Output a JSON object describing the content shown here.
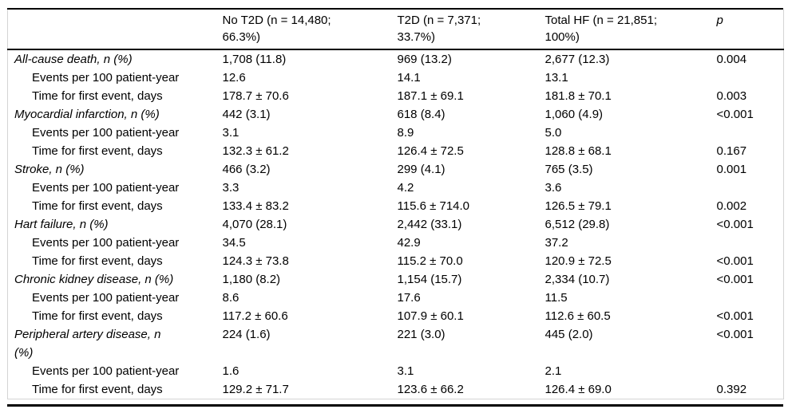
{
  "colors": {
    "rule": "#000000",
    "grid_border": "#d4d4d4",
    "text": "#000000",
    "background": "#ffffff"
  },
  "table": {
    "columns": [
      {
        "id": "outcome",
        "line1": "",
        "line2": ""
      },
      {
        "id": "no_t2d",
        "line1": "No T2D (n = 14,480;",
        "line2": "66.3%)"
      },
      {
        "id": "t2d",
        "line1": "T2D (n = 7,371;",
        "line2": "33.7%)"
      },
      {
        "id": "total_hf",
        "line1": "Total HF (n = 21,851;",
        "line2": "100%)"
      },
      {
        "id": "p",
        "line1": "p",
        "line2": ""
      }
    ],
    "rows": [
      {
        "type": "category",
        "label_lines": [
          "All-cause death, n (%)"
        ],
        "values": [
          "1,708 (11.8)",
          "969 (13.2)",
          "2,677 (12.3)",
          "0.004"
        ]
      },
      {
        "type": "sub",
        "label_lines": [
          "Events per 100 patient-year"
        ],
        "values": [
          "12.6",
          "14.1",
          "13.1",
          ""
        ]
      },
      {
        "type": "sub",
        "label_lines": [
          "Time for first event, days"
        ],
        "values": [
          "178.7 ± 70.6",
          "187.1 ± 69.1",
          "181.8 ± 70.1",
          "0.003"
        ]
      },
      {
        "type": "category",
        "label_lines": [
          "Myocardial infarction, n (%)"
        ],
        "values": [
          "442 (3.1)",
          "618 (8.4)",
          "1,060 (4.9)",
          "<0.001"
        ]
      },
      {
        "type": "sub",
        "label_lines": [
          "Events per 100 patient-year"
        ],
        "values": [
          "3.1",
          "8.9",
          "5.0",
          ""
        ]
      },
      {
        "type": "sub",
        "label_lines": [
          "Time for first event, days"
        ],
        "values": [
          "132.3 ± 61.2",
          "126.4 ± 72.5",
          "128.8 ± 68.1",
          "0.167"
        ]
      },
      {
        "type": "category",
        "label_lines": [
          "Stroke, n (%)"
        ],
        "values": [
          "466 (3.2)",
          "299 (4.1)",
          "765 (3.5)",
          "0.001"
        ]
      },
      {
        "type": "sub",
        "label_lines": [
          "Events per 100 patient-year"
        ],
        "values": [
          "3.3",
          "4.2",
          "3.6",
          ""
        ]
      },
      {
        "type": "sub",
        "label_lines": [
          "Time for first event, days"
        ],
        "values": [
          "133.4 ± 83.2",
          "115.6 ± 714.0",
          "126.5 ± 79.1",
          "0.002"
        ]
      },
      {
        "type": "category",
        "label_lines": [
          "Hart failure, n (%)"
        ],
        "values": [
          "4,070 (28.1)",
          "2,442 (33.1)",
          "6,512 (29.8)",
          "<0.001"
        ]
      },
      {
        "type": "sub",
        "label_lines": [
          "Events per 100 patient-year"
        ],
        "values": [
          "34.5",
          "42.9",
          "37.2",
          ""
        ]
      },
      {
        "type": "sub",
        "label_lines": [
          "Time for first event, days"
        ],
        "values": [
          "124.3 ± 73.8",
          "115.2 ± 70.0",
          "120.9 ± 72.5",
          "<0.001"
        ]
      },
      {
        "type": "category",
        "label_lines": [
          "Chronic kidney disease, n (%)"
        ],
        "values": [
          "1,180 (8.2)",
          "1,154 (15.7)",
          "2,334 (10.7)",
          "<0.001"
        ]
      },
      {
        "type": "sub",
        "label_lines": [
          "Events per 100 patient-year"
        ],
        "values": [
          "8.6",
          "17.6",
          "11.5",
          ""
        ]
      },
      {
        "type": "sub",
        "label_lines": [
          "Time for first event, days"
        ],
        "values": [
          "117.2 ± 60.6",
          "107.9 ± 60.1",
          "112.6 ± 60.5",
          "<0.001"
        ]
      },
      {
        "type": "category",
        "label_lines": [
          "Peripheral artery disease, n",
          "(%)"
        ],
        "values": [
          "224 (1.6)",
          "221 (3.0)",
          "445 (2.0)",
          "<0.001"
        ]
      },
      {
        "type": "sub",
        "label_lines": [
          "Events per 100 patient-year"
        ],
        "values": [
          "1.6",
          "3.1",
          "2.1",
          ""
        ]
      },
      {
        "type": "sub",
        "label_lines": [
          "Time for first event, days"
        ],
        "values": [
          "129.2 ± 71.7",
          "123.6 ± 66.2",
          "126.4 ± 69.0",
          "0.392"
        ]
      }
    ]
  }
}
